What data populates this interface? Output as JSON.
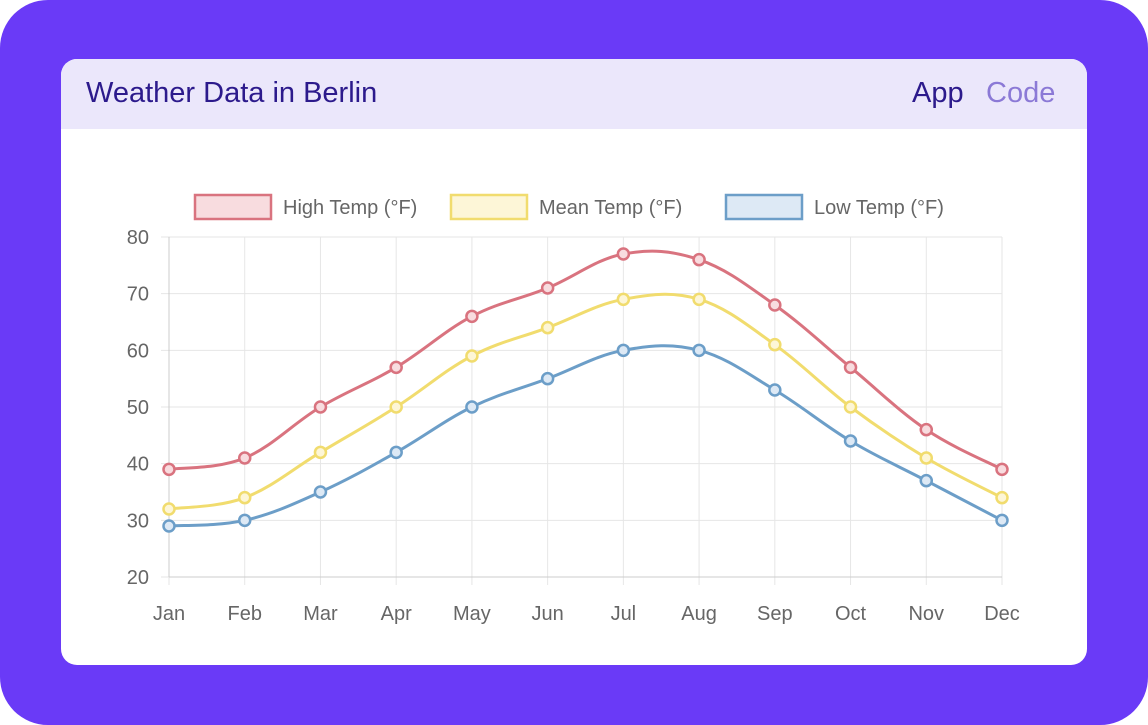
{
  "header": {
    "title": "Weather Data in Berlin",
    "nav": [
      {
        "label": "App",
        "active": true
      },
      {
        "label": "Code",
        "active": false
      }
    ]
  },
  "chart_data": {
    "type": "line",
    "title": "",
    "xlabel": "",
    "ylabel": "",
    "categories": [
      "Jan",
      "Feb",
      "Mar",
      "Apr",
      "May",
      "Jun",
      "Jul",
      "Aug",
      "Sep",
      "Oct",
      "Nov",
      "Dec"
    ],
    "ylim": [
      20,
      80
    ],
    "yticks": [
      20,
      30,
      40,
      50,
      60,
      70,
      80
    ],
    "grid": true,
    "legend_position": "top",
    "series": [
      {
        "name": "High Temp (°F)",
        "color": "#d9737f",
        "fill": "#f8dcdf",
        "values": [
          39,
          41,
          50,
          57,
          66,
          71,
          77,
          76,
          68,
          57,
          46,
          39
        ]
      },
      {
        "name": "Mean Temp (°F)",
        "color": "#f1dc6e",
        "fill": "#fdf6d7",
        "values": [
          32,
          34,
          42,
          50,
          59,
          64,
          69,
          69,
          61,
          50,
          41,
          34
        ]
      },
      {
        "name": "Low Temp (°F)",
        "color": "#6c9ec8",
        "fill": "#dde9f5",
        "values": [
          29,
          30,
          35,
          42,
          50,
          55,
          60,
          60,
          53,
          44,
          37,
          30
        ]
      }
    ]
  }
}
